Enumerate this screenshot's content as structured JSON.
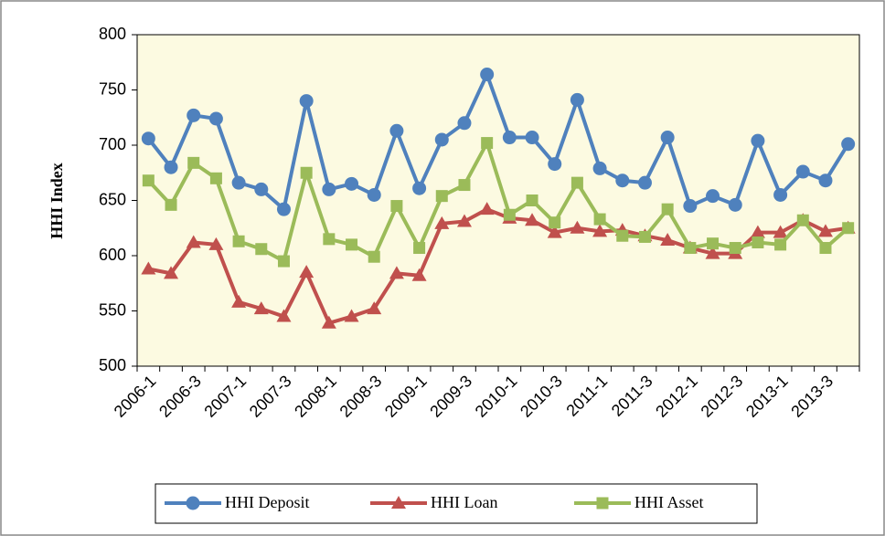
{
  "chart_data": {
    "type": "line",
    "ylabel": "HHI Index",
    "categories": [
      "2006-1",
      null,
      "2006-3",
      null,
      "2007-1",
      null,
      "2007-3",
      null,
      "2008-1",
      null,
      "2008-3",
      null,
      "2009-1",
      null,
      "2009-3",
      null,
      "2010-1",
      null,
      "2010-3",
      null,
      "2011-1",
      null,
      "2011-3",
      null,
      "2012-1",
      null,
      "2012-3",
      null,
      "2013-1",
      null,
      "2013-3",
      null
    ],
    "series": [
      {
        "name": "HHI Deposit",
        "color": "#4f81bd",
        "marker": "circle",
        "values": [
          706,
          680,
          727,
          724,
          666,
          660,
          642,
          740,
          660,
          665,
          655,
          713,
          661,
          705,
          720,
          764,
          707,
          707,
          683,
          741,
          679,
          668,
          666,
          707,
          645,
          654,
          646,
          704,
          655,
          676,
          668,
          701
        ]
      },
      {
        "name": "HHI Loan",
        "color": "#c0504d",
        "marker": "triangle",
        "values": [
          588,
          584,
          612,
          610,
          558,
          552,
          545,
          585,
          539,
          545,
          552,
          584,
          582,
          629,
          631,
          642,
          634,
          632,
          621,
          625,
          622,
          623,
          618,
          614,
          607,
          602,
          602,
          621,
          621,
          632,
          622,
          625
        ]
      },
      {
        "name": "HHI Asset",
        "color": "#9bbb59",
        "marker": "square",
        "values": [
          668,
          646,
          684,
          670,
          613,
          606,
          595,
          675,
          615,
          610,
          599,
          645,
          607,
          654,
          664,
          702,
          637,
          650,
          630,
          666,
          633,
          618,
          617,
          642,
          607,
          611,
          607,
          612,
          610,
          632,
          607,
          625
        ]
      }
    ],
    "ylim": [
      500,
      800
    ],
    "yticks": [
      500,
      550,
      600,
      650,
      700,
      750,
      800
    ]
  }
}
